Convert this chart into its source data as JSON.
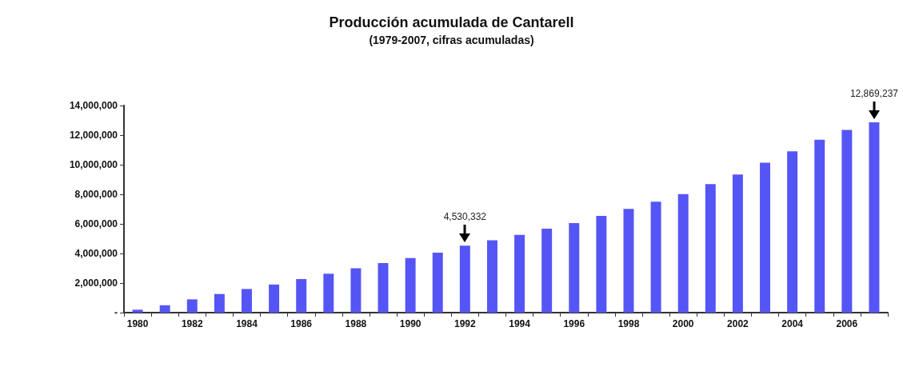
{
  "chart_data": {
    "type": "bar",
    "title": "Producción acumulada de Cantarell",
    "subtitle": "(1979-2007, cifras acumuladas)",
    "categories": [
      "1980",
      null,
      "1982",
      null,
      "1984",
      null,
      "1986",
      null,
      "1988",
      null,
      "1990",
      null,
      "1992",
      null,
      "1994",
      null,
      "1996",
      null,
      "1998",
      null,
      "2000",
      null,
      "2002",
      null,
      "2004",
      null,
      "2006",
      null
    ],
    "values": [
      200000,
      500000,
      900000,
      1260000,
      1600000,
      1900000,
      2270000,
      2630000,
      3000000,
      3350000,
      3690000,
      4050000,
      4530332,
      4890000,
      5260000,
      5680000,
      6050000,
      6540000,
      7020000,
      7500000,
      8010000,
      8690000,
      9340000,
      10130000,
      10900000,
      11690000,
      12350000,
      12869237
    ],
    "value_labels": [
      null,
      null,
      null,
      null,
      null,
      null,
      null,
      null,
      null,
      null,
      null,
      null,
      "4,530,332",
      null,
      null,
      null,
      null,
      null,
      null,
      null,
      null,
      null,
      null,
      null,
      null,
      null,
      null,
      "12,869,237"
    ],
    "color": "#5555f5",
    "ylim": [
      0,
      14000000
    ],
    "yticks": [
      {
        "value": 0,
        "label": "-"
      },
      {
        "value": 2000000,
        "label": "2,000,000"
      },
      {
        "value": 4000000,
        "label": "4,000,000"
      },
      {
        "value": 6000000,
        "label": "6,000,000"
      },
      {
        "value": 8000000,
        "label": "8,000,000"
      },
      {
        "value": 10000000,
        "label": "10,000,000"
      },
      {
        "value": 12000000,
        "label": "12,000,000"
      },
      {
        "value": 14000000,
        "label": "14,000,000"
      }
    ],
    "grid": false
  }
}
